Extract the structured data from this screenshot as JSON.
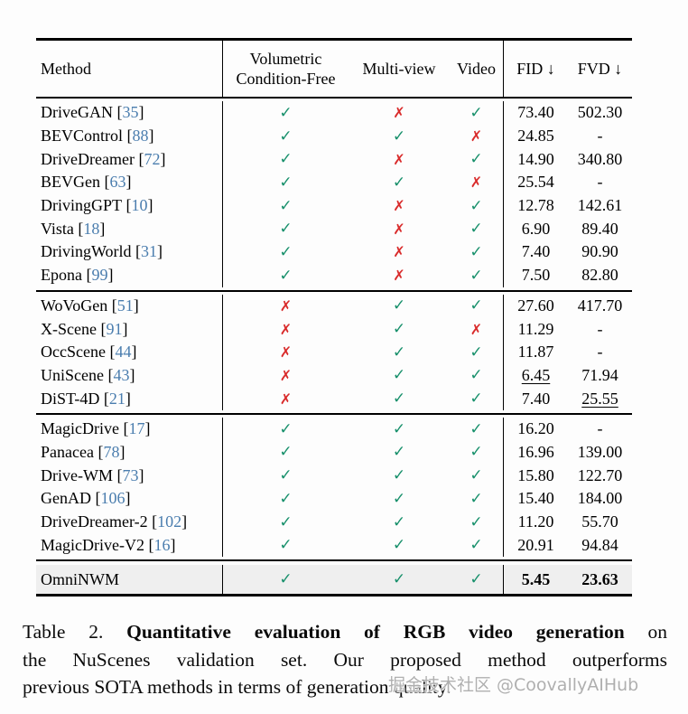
{
  "colors": {
    "check_green": "#17906b",
    "cross_red": "#d92b2b",
    "cite_blue": "#4a7dae",
    "highlight_bg": "#efefef"
  },
  "glyphs": {
    "check": "✓",
    "cross": "✗"
  },
  "table": {
    "headers": {
      "method": "Method",
      "volumetric_line1": "Volumetric",
      "volumetric_line2": "Condition-Free",
      "multiview": "Multi-view",
      "video": "Video",
      "fid": "FID ↓",
      "fvd": "FVD ↓"
    },
    "groups": [
      {
        "rows": [
          {
            "m": "DriveGAN",
            "c": "35",
            "marks": [
              "check",
              "cross",
              "check"
            ],
            "fid": "73.40",
            "fvd": "502.30"
          },
          {
            "m": "BEVControl",
            "c": "88",
            "marks": [
              "check",
              "check",
              "cross"
            ],
            "fid": "24.85",
            "fvd": "-"
          },
          {
            "m": "DriveDreamer",
            "c": "72",
            "marks": [
              "check",
              "cross",
              "check"
            ],
            "fid": "14.90",
            "fvd": "340.80"
          },
          {
            "m": "BEVGen",
            "c": "63",
            "marks": [
              "check",
              "check",
              "cross"
            ],
            "fid": "25.54",
            "fvd": "-"
          },
          {
            "m": "DrivingGPT",
            "c": "10",
            "marks": [
              "check",
              "cross",
              "check"
            ],
            "fid": "12.78",
            "fvd": "142.61"
          },
          {
            "m": "Vista",
            "c": "18",
            "marks": [
              "check",
              "cross",
              "check"
            ],
            "fid": "6.90",
            "fvd": "89.40"
          },
          {
            "m": "DrivingWorld",
            "c": "31",
            "marks": [
              "check",
              "cross",
              "check"
            ],
            "fid": "7.40",
            "fvd": "90.90"
          },
          {
            "m": "Epona",
            "c": "99",
            "marks": [
              "check",
              "cross",
              "check"
            ],
            "fid": "7.50",
            "fvd": "82.80"
          }
        ]
      },
      {
        "rows": [
          {
            "m": "WoVoGen",
            "c": "51",
            "marks": [
              "cross",
              "check",
              "check"
            ],
            "fid": "27.60",
            "fvd": "417.70"
          },
          {
            "m": "X-Scene",
            "c": "91",
            "marks": [
              "cross",
              "check",
              "cross"
            ],
            "fid": "11.29",
            "fvd": "-"
          },
          {
            "m": "OccScene",
            "c": "44",
            "marks": [
              "cross",
              "check",
              "check"
            ],
            "fid": "11.87",
            "fvd": "-"
          },
          {
            "m": "UniScene",
            "c": "43",
            "marks": [
              "cross",
              "check",
              "check"
            ],
            "fid": "6.45",
            "fvd": "71.94",
            "fid_style": "u"
          },
          {
            "m": "DiST-4D",
            "c": "21",
            "marks": [
              "cross",
              "check",
              "check"
            ],
            "fid": "7.40",
            "fvd": "25.55",
            "fvd_style": "u"
          }
        ]
      },
      {
        "rows": [
          {
            "m": "MagicDrive",
            "c": "17",
            "marks": [
              "check",
              "check",
              "check"
            ],
            "fid": "16.20",
            "fvd": "-"
          },
          {
            "m": "Panacea",
            "c": "78",
            "marks": [
              "check",
              "check",
              "check"
            ],
            "fid": "16.96",
            "fvd": "139.00"
          },
          {
            "m": "Drive-WM",
            "c": "73",
            "marks": [
              "check",
              "check",
              "check"
            ],
            "fid": "15.80",
            "fvd": "122.70"
          },
          {
            "m": "GenAD",
            "c": "106",
            "marks": [
              "check",
              "check",
              "check"
            ],
            "fid": "15.40",
            "fvd": "184.00"
          },
          {
            "m": "DriveDreamer-2",
            "c": "102",
            "marks": [
              "check",
              "check",
              "check"
            ],
            "fid": "11.20",
            "fvd": "55.70"
          },
          {
            "m": "MagicDrive-V2",
            "c": "16",
            "marks": [
              "check",
              "check",
              "check"
            ],
            "fid": "20.91",
            "fvd": "94.84"
          }
        ]
      }
    ],
    "highlight_row": {
      "m": "OmniNWM",
      "c": "",
      "marks": [
        "check",
        "check",
        "check"
      ],
      "fid": "5.45",
      "fvd": "23.63",
      "fid_style": "b",
      "fvd_style": "b"
    }
  },
  "caption": {
    "lines": [
      {
        "last": false,
        "segments": [
          {
            "t": "Table 2.  ",
            "b": false
          },
          {
            "t": "Quantitative evaluation of RGB video generation",
            "b": true
          },
          {
            "t": " on",
            "b": false
          }
        ]
      },
      {
        "last": false,
        "segments": [
          {
            "t": "the NuScenes validation set.  Our proposed method outperforms",
            "b": false
          }
        ]
      },
      {
        "last": true,
        "segments": [
          {
            "t": "previous SOTA methods in terms of generation quality.",
            "b": false
          }
        ]
      }
    ]
  },
  "watermark": "掘金技术社区 @CoovallyAIHub"
}
